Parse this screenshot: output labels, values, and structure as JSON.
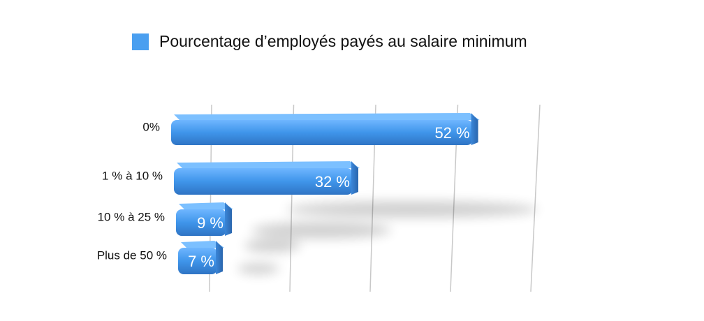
{
  "chart_data": {
    "type": "bar",
    "orientation": "horizontal",
    "legend": "top",
    "categories": [
      "0%",
      "1 % à 10 %",
      "10 % à 25 %",
      "Plus de 50 %"
    ],
    "series": [
      {
        "name": "Pourcentage d’employés payés au salaire minimum",
        "color": "#4a9ff0",
        "values": [
          52,
          32,
          9,
          7
        ],
        "value_labels": [
          "52 %",
          "32 %",
          "9 %",
          "7 %"
        ]
      }
    ],
    "xlim": [
      0,
      60
    ],
    "xticks": [
      0,
      15,
      30,
      45,
      60
    ],
    "grid": true
  }
}
